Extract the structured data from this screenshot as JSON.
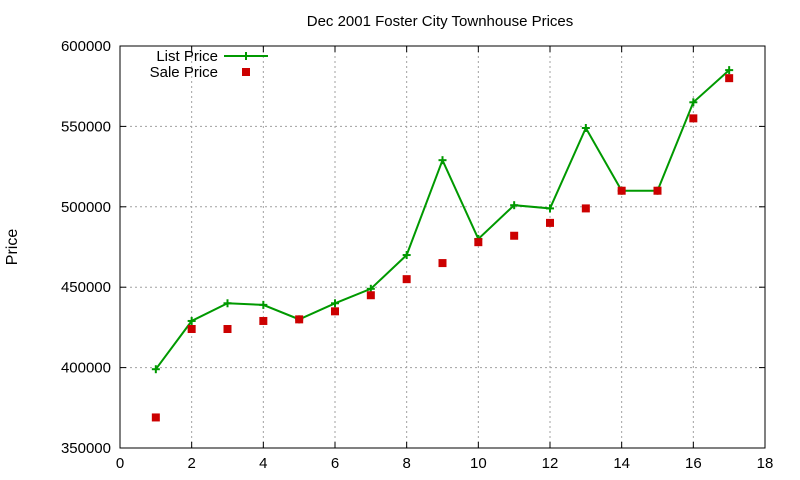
{
  "chart_data": {
    "type": "line",
    "title": "Dec 2001 Foster City Townhouse Prices",
    "xlabel": "",
    "ylabel": "Price",
    "xlim": [
      0,
      18
    ],
    "ylim": [
      350000,
      600000
    ],
    "x_ticks": [
      0,
      2,
      4,
      6,
      8,
      10,
      12,
      14,
      16,
      18
    ],
    "y_ticks": [
      350000,
      400000,
      450000,
      500000,
      550000,
      600000
    ],
    "grid": true,
    "legend_position": "top-left",
    "series": [
      {
        "name": "List Price",
        "style": "line-with-plus-markers",
        "color": "#009900",
        "x": [
          1,
          2,
          3,
          4,
          5,
          6,
          7,
          8,
          9,
          10,
          11,
          12,
          13,
          14,
          15,
          16,
          17
        ],
        "values": [
          399000,
          429000,
          440000,
          439000,
          430000,
          440000,
          449000,
          470000,
          529000,
          480000,
          501000,
          499000,
          549000,
          510000,
          510000,
          565000,
          585000
        ]
      },
      {
        "name": "Sale Price",
        "style": "square-markers",
        "color": "#cc0000",
        "x": [
          1,
          2,
          3,
          4,
          5,
          6,
          7,
          8,
          9,
          10,
          11,
          12,
          13,
          14,
          15,
          16,
          17
        ],
        "values": [
          369000,
          424000,
          424000,
          429000,
          430000,
          435000,
          445000,
          455000,
          465000,
          478000,
          482000,
          490000,
          499000,
          510000,
          510000,
          555000,
          580000
        ]
      }
    ]
  }
}
